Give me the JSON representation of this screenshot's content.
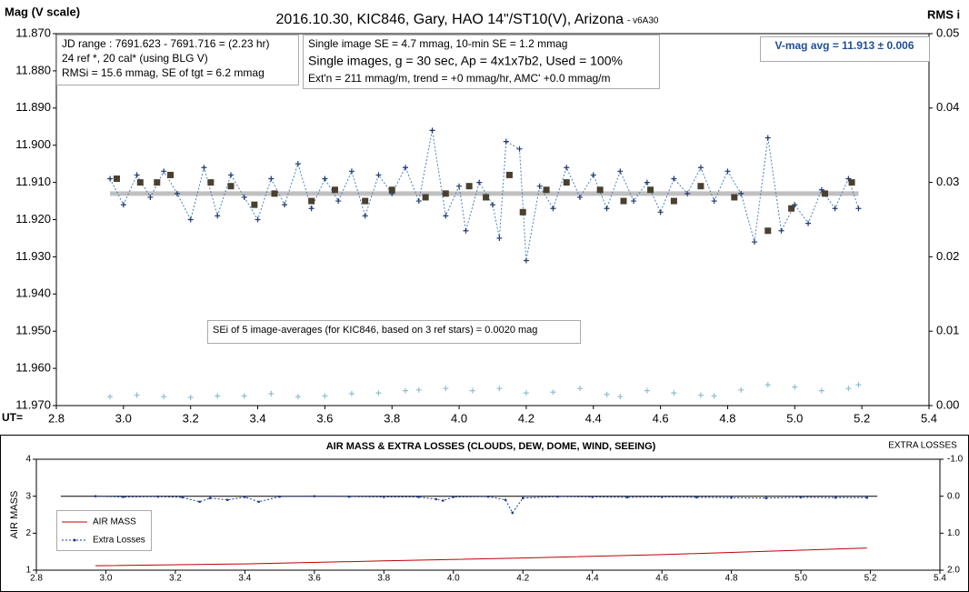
{
  "chart_data": [
    {
      "type": "line",
      "title": "2016.10.30, KIC846, Gary, HAO 14\"/ST10(V), Arizona",
      "subtitle": "- v6A30",
      "y_label": "Mag (V scale)",
      "y2_label": "RMS i",
      "x_label": "UT=",
      "xlim": [
        2.8,
        5.4
      ],
      "xticks": [
        2.8,
        {
          "value": 3,
          "label": "3.0"
        },
        3.2,
        3.4,
        3.6,
        3.8,
        {
          "value": 4,
          "label": "4.0"
        },
        4.2,
        4.4,
        4.6,
        4.8,
        {
          "value": 5,
          "label": "5.0"
        },
        5.2,
        5.4
      ],
      "ylim": [
        11.87,
        11.97
      ],
      "y_inverted": true,
      "yticks": [
        {
          "value": 11.87,
          "label": "11.870"
        },
        {
          "value": 11.88,
          "label": "11.880"
        },
        {
          "value": 11.89,
          "label": "11.890"
        },
        {
          "value": 11.9,
          "label": "11.900"
        },
        {
          "value": 11.91,
          "label": "11.910"
        },
        {
          "value": 11.92,
          "label": "11.920"
        },
        {
          "value": 11.93,
          "label": "11.930"
        },
        {
          "value": 11.94,
          "label": "11.940"
        },
        {
          "value": 11.95,
          "label": "11.950"
        },
        {
          "value": 11.96,
          "label": "11.960"
        },
        {
          "value": 11.97,
          "label": "11.970"
        }
      ],
      "y2lim": [
        0,
        0.05
      ],
      "y2ticks": [
        {
          "value": 0,
          "label": "0.00"
        },
        0.01,
        0.02,
        0.03,
        0.04,
        0.05
      ],
      "annotations": [
        [
          "JD range : 7691.623 - 7691.716 = (2.23 hr)",
          "24 ref *, 20 cal* (using BLG V)",
          "RMSi = 15.6 mmag, SE of tgt = 6.2 mmag"
        ],
        [
          "Single image SE = 4.7 mmag, 10-min SE = 1.2 mmag",
          "Single images, g = 30 sec, Ap = 4x1x7b2, Used = 100%",
          "Ext'n = 211 mmag/m, trend = +0 mmag/hr, AMC' +0.0 mmag/m"
        ],
        [
          "V-mag avg = 11.913  ± 0.006"
        ],
        [
          "SEi of 5 image-averages (for KIC846, based on 3 ref stars) = 0.0020 mag"
        ]
      ],
      "series": [
        {
          "color": "#c0c0c0",
          "style": "thick",
          "x": [
            2.96,
            5.19
          ],
          "values": [
            11.913,
            11.913
          ]
        },
        {
          "color": "#4a7fc0",
          "style": "dotted",
          "marker": "plus",
          "marker_color": "#1f3a70",
          "x": [
            2.96,
            3.0,
            3.04,
            3.08,
            3.12,
            3.16,
            3.2,
            3.24,
            3.28,
            3.32,
            3.36,
            3.4,
            3.44,
            3.48,
            3.52,
            3.56,
            3.6,
            3.64,
            3.68,
            3.72,
            3.76,
            3.8,
            3.84,
            3.88,
            3.92,
            3.96,
            4.0,
            4.02,
            4.06,
            4.1,
            4.12,
            4.14,
            4.18,
            4.2,
            4.24,
            4.28,
            4.32,
            4.36,
            4.4,
            4.44,
            4.48,
            4.52,
            4.56,
            4.6,
            4.64,
            4.68,
            4.72,
            4.76,
            4.8,
            4.84,
            4.88,
            4.92,
            4.96,
            5.0,
            5.04,
            5.08,
            5.12,
            5.16,
            5.19
          ],
          "values": [
            11.909,
            11.916,
            11.908,
            11.914,
            11.907,
            11.913,
            11.92,
            11.906,
            11.919,
            11.908,
            11.914,
            11.92,
            11.909,
            11.916,
            11.905,
            11.917,
            11.909,
            11.915,
            11.907,
            11.919,
            11.908,
            11.913,
            11.906,
            11.915,
            11.896,
            11.919,
            11.911,
            11.923,
            11.91,
            11.916,
            11.925,
            11.899,
            11.901,
            11.931,
            11.911,
            11.917,
            11.906,
            11.914,
            11.908,
            11.917,
            11.907,
            11.915,
            11.91,
            11.918,
            11.909,
            11.913,
            11.906,
            11.915,
            11.907,
            11.913,
            11.926,
            11.898,
            11.923,
            11.916,
            11.921,
            11.912,
            11.917,
            11.909,
            11.917
          ]
        },
        {
          "color": "#4a4030",
          "style": "none",
          "marker": "square",
          "x": [
            2.98,
            3.05,
            3.1,
            3.14,
            3.26,
            3.32,
            3.39,
            3.45,
            3.56,
            3.63,
            3.72,
            3.8,
            3.9,
            3.96,
            4.03,
            4.08,
            4.15,
            4.19,
            4.26,
            4.32,
            4.42,
            4.49,
            4.57,
            4.64,
            4.72,
            4.82,
            4.92,
            4.99,
            5.09,
            5.17
          ],
          "values": [
            11.909,
            11.91,
            11.91,
            11.908,
            11.91,
            11.911,
            11.916,
            11.913,
            11.915,
            11.912,
            11.915,
            11.912,
            11.914,
            11.913,
            11.911,
            11.914,
            11.908,
            11.918,
            11.912,
            11.91,
            11.912,
            11.915,
            11.912,
            11.915,
            11.911,
            11.914,
            11.923,
            11.917,
            11.913,
            11.91
          ]
        },
        {
          "color": "#8cc0d0",
          "style": "none",
          "marker": "plus",
          "marker_color": "#8cc0d0",
          "axis": "y2",
          "x": [
            2.96,
            3.04,
            3.12,
            3.2,
            3.28,
            3.36,
            3.44,
            3.52,
            3.6,
            3.68,
            3.76,
            3.84,
            3.88,
            3.92,
            3.96,
            4.04,
            4.12,
            4.2,
            4.28,
            4.36,
            4.44,
            4.48,
            4.56,
            4.64,
            4.72,
            4.76,
            4.84,
            4.92,
            5.0,
            5.08,
            5.16,
            5.19
          ],
          "values": [
            0.0012,
            0.0014,
            0.0012,
            0.0011,
            0.0013,
            0.0013,
            0.0016,
            0.0012,
            0.0013,
            0.0016,
            0.0017,
            0.002,
            0.0021,
            null,
            0.0023,
            0.002,
            0.0023,
            0.0017,
            0.0018,
            0.0023,
            0.0015,
            0.0012,
            0.002,
            0.0017,
            0.0014,
            0.0013,
            0.0021,
            0.0028,
            0.0025,
            0.002,
            0.0023,
            0.0028
          ]
        }
      ]
    },
    {
      "type": "line",
      "title": "AIR MASS & EXTRA LOSSES (CLOUDS, DEW, DOME, WIND, SEEING)",
      "y_label": "AIR MASS",
      "y2_label": "EXTRA LOSSES",
      "xlim": [
        2.8,
        5.4
      ],
      "xticks": [
        2.8,
        {
          "value": 3,
          "label": "3.0"
        },
        3.2,
        3.4,
        3.6,
        3.8,
        {
          "value": 4,
          "label": "4.0"
        },
        4.2,
        4.4,
        4.6,
        4.8,
        {
          "value": 5,
          "label": "5.0"
        },
        5.2,
        5.4
      ],
      "ylim": [
        1,
        4
      ],
      "yticks": [
        1,
        2,
        3,
        4
      ],
      "y2lim": [
        -1,
        2
      ],
      "y2_inverted": true,
      "y2ticks": [
        {
          "value": -1,
          "label": "-1.0"
        },
        {
          "value": 0,
          "label": "0.0"
        },
        {
          "value": 1,
          "label": "1.0"
        },
        {
          "value": 2,
          "label": "2.0"
        }
      ],
      "series": [
        {
          "color": "#000000",
          "style": "solid",
          "axis": "y2",
          "x": [
            2.87,
            5.22
          ],
          "values": [
            0,
            0
          ]
        },
        {
          "name": "AIR MASS",
          "color": "#c00000",
          "style": "solid",
          "x": [
            2.97,
            3.4,
            3.8,
            4.2,
            4.6,
            5.0,
            5.19
          ],
          "values": [
            1.12,
            1.17,
            1.25,
            1.33,
            1.42,
            1.54,
            1.6
          ]
        },
        {
          "name": "Extra Losses",
          "color": "#1f3a90",
          "style": "dotted",
          "marker": "dot",
          "marker_color": "#1f3a90",
          "axis": "y2",
          "x": [
            2.97,
            3.05,
            3.15,
            3.22,
            3.27,
            3.3,
            3.35,
            3.4,
            3.44,
            3.5,
            3.6,
            3.7,
            3.8,
            3.9,
            3.95,
            3.97,
            4.0,
            4.1,
            4.15,
            4.17,
            4.2,
            4.3,
            4.4,
            4.5,
            4.6,
            4.7,
            4.8,
            4.9,
            5.0,
            5.1,
            5.19
          ],
          "values": [
            0.0,
            0.02,
            0.01,
            0.03,
            0.15,
            0.05,
            0.1,
            0.02,
            0.15,
            0.01,
            0.0,
            0.01,
            0.02,
            0.02,
            0.08,
            0.12,
            0.02,
            0.01,
            0.1,
            0.45,
            0.05,
            0.01,
            0.02,
            0.03,
            0.02,
            0.03,
            0.04,
            0.05,
            0.03,
            0.04,
            0.04
          ]
        }
      ]
    }
  ]
}
